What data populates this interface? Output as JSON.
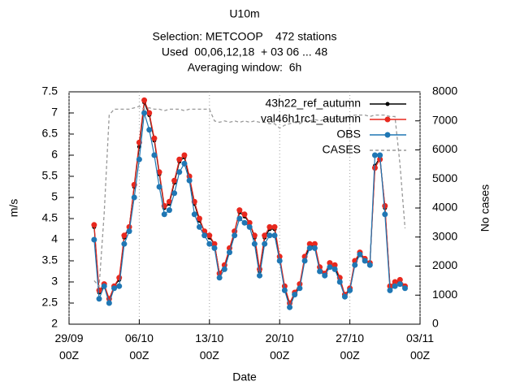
{
  "chart_data": {
    "type": "line",
    "title_lines": [
      "U10m",
      "Selection: METCOOP    472 stations",
      "Used  00,06,12,18  + 03 06 ... 48",
      "Averaging window:  6h"
    ],
    "xlabel": "Date",
    "ylabel": "m/s",
    "y2label": "No cases",
    "x": [
      "01/10 12Z",
      "02/10 00Z",
      "02/10 12Z",
      "03/10 00Z",
      "03/10 12Z",
      "04/10 00Z",
      "04/10 12Z",
      "05/10 00Z",
      "05/10 12Z",
      "06/10 00Z",
      "06/10 12Z",
      "07/10 00Z",
      "07/10 12Z",
      "08/10 00Z",
      "08/10 12Z",
      "09/10 00Z",
      "09/10 12Z",
      "10/10 00Z",
      "10/10 12Z",
      "11/10 00Z",
      "11/10 12Z",
      "12/10 00Z",
      "12/10 12Z",
      "13/10 00Z",
      "13/10 12Z",
      "14/10 00Z",
      "14/10 12Z",
      "15/10 00Z",
      "15/10 12Z",
      "16/10 00Z",
      "16/10 12Z",
      "17/10 00Z",
      "17/10 12Z",
      "18/10 00Z",
      "18/10 12Z",
      "19/10 00Z",
      "19/10 12Z",
      "20/10 00Z",
      "20/10 12Z",
      "21/10 00Z",
      "21/10 12Z",
      "22/10 00Z",
      "22/10 12Z",
      "23/10 00Z",
      "23/10 12Z",
      "24/10 00Z",
      "24/10 12Z",
      "25/10 00Z",
      "25/10 12Z",
      "26/10 00Z",
      "26/10 12Z",
      "27/10 00Z",
      "27/10 12Z",
      "28/10 00Z",
      "28/10 12Z",
      "29/10 00Z",
      "29/10 12Z",
      "30/10 00Z",
      "30/10 12Z",
      "31/10 00Z",
      "31/10 12Z",
      "01/11 00Z",
      "01/11 12Z"
    ],
    "series": [
      {
        "name": "43h22_ref_autumn",
        "color": "#000000",
        "marker_size": 2.5,
        "values": [
          4.3,
          2.75,
          2.9,
          2.55,
          2.9,
          3.05,
          4.05,
          4.3,
          5.25,
          6.2,
          7.25,
          6.95,
          6.35,
          5.55,
          4.75,
          4.85,
          5.35,
          5.85,
          5.95,
          5.45,
          4.85,
          4.45,
          4.2,
          4.05,
          3.9,
          3.2,
          3.35,
          3.75,
          4.2,
          4.65,
          4.55,
          4.4,
          4.05,
          3.25,
          4.05,
          4.25,
          4.25,
          3.55,
          2.85,
          2.45,
          2.7,
          2.9,
          3.55,
          3.85,
          3.85,
          3.3,
          3.2,
          3.4,
          3.35,
          3.05,
          2.7,
          2.8,
          3.45,
          3.7,
          3.5,
          3.45,
          5.75,
          5.95,
          4.75,
          2.9,
          3.0,
          3.0,
          2.9
        ]
      },
      {
        "name": "val46h1rc1_autumn",
        "color": "#e8281e",
        "marker_size": 3.5,
        "values": [
          4.35,
          2.8,
          2.95,
          2.6,
          2.9,
          3.1,
          4.1,
          4.3,
          5.3,
          6.3,
          7.3,
          7.0,
          6.4,
          5.6,
          4.8,
          4.9,
          5.4,
          5.9,
          6.0,
          5.5,
          4.9,
          4.5,
          4.2,
          4.1,
          3.9,
          3.2,
          3.4,
          3.8,
          4.2,
          4.7,
          4.6,
          4.4,
          4.1,
          3.3,
          4.1,
          4.3,
          4.3,
          3.6,
          2.9,
          2.5,
          2.75,
          2.95,
          3.6,
          3.9,
          3.9,
          3.35,
          3.2,
          3.45,
          3.4,
          3.1,
          2.7,
          2.85,
          3.5,
          3.7,
          3.55,
          3.45,
          5.7,
          5.9,
          4.8,
          2.9,
          3.0,
          3.05,
          2.9
        ]
      },
      {
        "name": "OBS",
        "color": "#1f77b4",
        "marker_size": 3.5,
        "values": [
          4.0,
          2.6,
          2.9,
          2.5,
          2.85,
          2.9,
          3.9,
          4.2,
          5.0,
          5.9,
          7.0,
          6.6,
          6.0,
          5.25,
          4.6,
          4.7,
          5.1,
          5.6,
          5.8,
          5.4,
          4.6,
          4.3,
          4.1,
          3.9,
          3.8,
          3.1,
          3.3,
          3.7,
          4.1,
          4.5,
          4.4,
          4.3,
          3.9,
          3.15,
          3.9,
          4.1,
          4.1,
          3.5,
          2.8,
          2.4,
          2.7,
          2.85,
          3.5,
          3.8,
          3.8,
          3.25,
          3.15,
          3.35,
          3.3,
          3.0,
          2.65,
          2.8,
          3.4,
          3.65,
          3.5,
          3.4,
          6.0,
          6.0,
          4.6,
          2.8,
          2.9,
          2.95,
          2.85
        ]
      },
      {
        "name": "CASES",
        "color": "#999999",
        "axis": "y2",
        "dashed": true,
        "values": [
          1500,
          1300,
          3800,
          7200,
          7400,
          7400,
          7400,
          7400,
          7450,
          7500,
          7400,
          7450,
          7400,
          7400,
          7350,
          7400,
          7400,
          7400,
          7350,
          7400,
          7400,
          7400,
          7400,
          7400,
          7000,
          6950,
          7000,
          6950,
          7000,
          6950,
          7000,
          6950,
          7000,
          6950,
          6950,
          6900,
          6900,
          6750,
          6850,
          6900,
          6950,
          6900,
          7000,
          7000,
          7050,
          7000,
          7050,
          7050,
          7100,
          7050,
          7100,
          7150,
          7200,
          7200,
          7200,
          7150,
          7200,
          7200,
          7200,
          7150,
          7150,
          5500,
          3300
        ]
      }
    ],
    "xlim": [
      "29/09 00Z",
      "03/11 00Z"
    ],
    "xticks": [
      {
        "value": "29/09 00Z",
        "label": "29/09\n00Z"
      },
      {
        "value": "06/10 00Z",
        "label": "06/10\n00Z"
      },
      {
        "value": "13/10 00Z",
        "label": "13/10\n00Z"
      },
      {
        "value": "20/10 00Z",
        "label": "20/10\n00Z"
      },
      {
        "value": "27/10 00Z",
        "label": "27/10\n00Z"
      },
      {
        "value": "03/11 00Z",
        "label": "03/11\n00Z"
      }
    ],
    "ylim": [
      2,
      7.5
    ],
    "yticks": [
      2,
      2.5,
      3,
      3.5,
      4,
      4.5,
      5,
      5.5,
      6,
      6.5,
      7,
      7.5
    ],
    "y2lim": [
      0,
      8000
    ],
    "y2ticks": [
      0,
      1000,
      2000,
      3000,
      4000,
      5000,
      6000,
      7000,
      8000
    ],
    "xgrid": true,
    "legend": "top-right"
  }
}
